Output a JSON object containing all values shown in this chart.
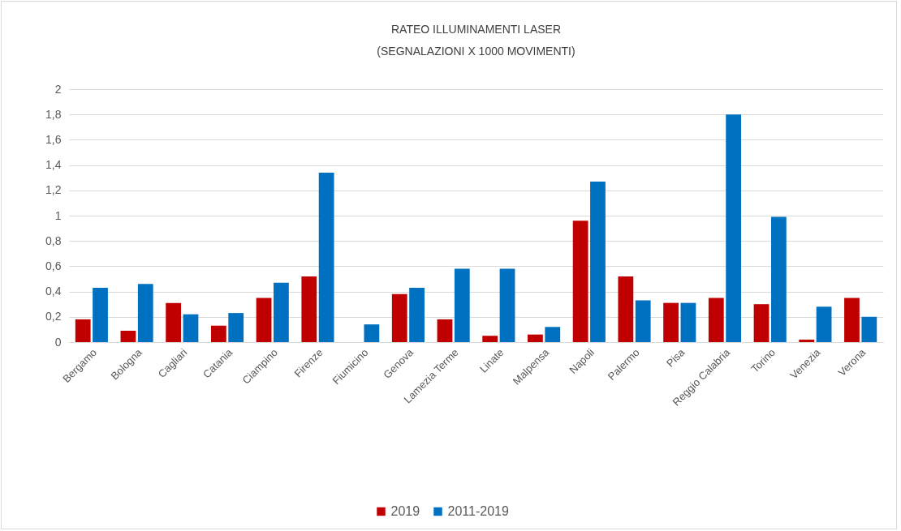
{
  "chart_data": {
    "type": "bar",
    "title": "RATEO ILLUMINAMENTI LASER",
    "subtitle": "(SEGNALAZIONI X 1000 MOVIMENTI)",
    "categories": [
      "Bergamo",
      "Bologna",
      "Cagliari",
      "Catania",
      "Ciampino",
      "Firenze",
      "Fiumicino",
      "Genova",
      "Lamezia Terme",
      "Linate",
      "Malpensa",
      "Napoli",
      "Palermo",
      "Pisa",
      "Reggio Calabria",
      "Torino",
      "Venezia",
      "Verona"
    ],
    "series": [
      {
        "name": "2019",
        "color": "#c00000",
        "values": [
          0.18,
          0.09,
          0.31,
          0.13,
          0.35,
          0.52,
          null,
          0.38,
          0.18,
          0.05,
          0.06,
          0.96,
          0.52,
          0.31,
          0.35,
          0.3,
          0.02,
          0.35
        ]
      },
      {
        "name": "2011-2019",
        "color": "#0070c0",
        "values": [
          0.43,
          0.46,
          0.22,
          0.23,
          0.47,
          1.34,
          0.14,
          0.43,
          0.58,
          0.58,
          0.12,
          1.27,
          0.33,
          0.31,
          1.8,
          0.99,
          0.28,
          0.2
        ]
      }
    ],
    "ylim": [
      0,
      2
    ],
    "yticks": [
      0,
      {
        "value": 0.2,
        "label": "0,2"
      },
      {
        "value": 0.4,
        "label": "0,4"
      },
      {
        "value": 0.6,
        "label": "0,6"
      },
      {
        "value": 0.8,
        "label": "0,8"
      },
      1,
      {
        "value": 1.2,
        "label": "1,2"
      },
      {
        "value": 1.4,
        "label": "1,4"
      },
      {
        "value": 1.6,
        "label": "1,6"
      },
      {
        "value": 1.8,
        "label": "1,8"
      },
      2
    ],
    "grid": "y",
    "legend": "bottom"
  }
}
